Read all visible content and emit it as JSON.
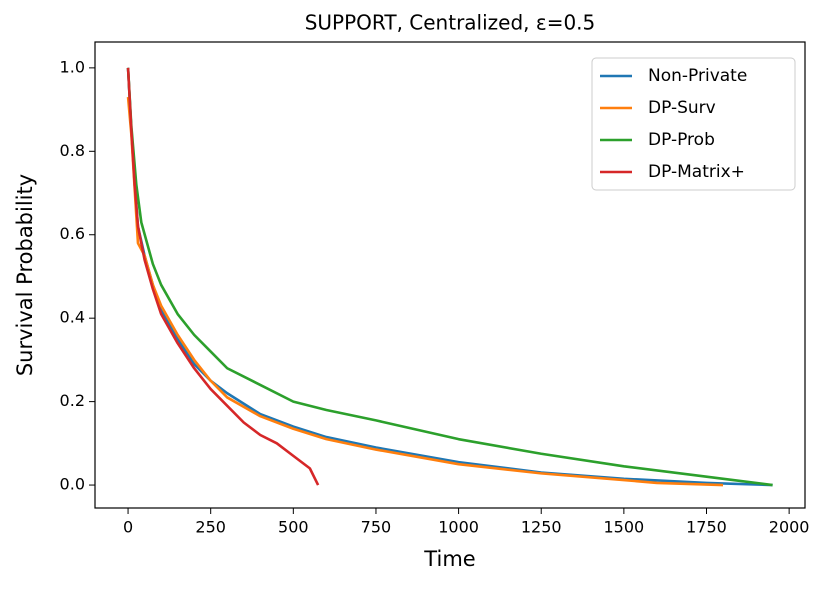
{
  "chart_data": {
    "type": "line",
    "title": "SUPPORT, Centralized, ε=0.5",
    "x_label": "Time",
    "y_label": "Survival Probability",
    "xlim": [
      -100,
      2048
    ],
    "ylim": [
      -0.055,
      1.062
    ],
    "xticks": [
      0,
      250,
      500,
      750,
      1000,
      1250,
      1500,
      1750,
      2000
    ],
    "yticks": [
      {
        "value": 0,
        "label": "0.0"
      },
      0.2,
      0.4,
      0.6,
      0.8,
      {
        "value": 1,
        "label": "1.0"
      }
    ],
    "legend": "upper right",
    "series": [
      {
        "name": "Non-Private",
        "color": "#1f77b4",
        "x": [
          0,
          10,
          20,
          30,
          50,
          75,
          100,
          150,
          200,
          250,
          300,
          400,
          500,
          600,
          750,
          1000,
          1250,
          1500,
          1750,
          1950
        ],
        "values": [
          1.0,
          0.85,
          0.72,
          0.62,
          0.55,
          0.48,
          0.42,
          0.35,
          0.29,
          0.25,
          0.22,
          0.17,
          0.14,
          0.115,
          0.09,
          0.055,
          0.03,
          0.015,
          0.005,
          0.0
        ]
      },
      {
        "name": "DP-Surv",
        "color": "#ff7f0e",
        "x": [
          0,
          10,
          20,
          30,
          50,
          75,
          100,
          150,
          200,
          250,
          300,
          400,
          500,
          600,
          750,
          1000,
          1250,
          1500,
          1600,
          1800
        ],
        "values": [
          0.93,
          0.84,
          0.71,
          0.58,
          0.55,
          0.48,
          0.43,
          0.36,
          0.3,
          0.25,
          0.21,
          0.165,
          0.135,
          0.11,
          0.085,
          0.05,
          0.028,
          0.012,
          0.005,
          0.0
        ]
      },
      {
        "name": "DP-Prob",
        "color": "#2ca02c",
        "x": [
          0,
          10,
          25,
          40,
          75,
          100,
          150,
          200,
          250,
          300,
          400,
          500,
          600,
          750,
          1000,
          1250,
          1500,
          1750,
          1950
        ],
        "values": [
          1.0,
          0.86,
          0.72,
          0.63,
          0.53,
          0.48,
          0.41,
          0.36,
          0.32,
          0.28,
          0.24,
          0.2,
          0.18,
          0.155,
          0.11,
          0.075,
          0.045,
          0.02,
          0.0
        ]
      },
      {
        "name": "DP-Matrix+",
        "color": "#d62728",
        "x": [
          0,
          10,
          20,
          30,
          50,
          75,
          100,
          150,
          200,
          250,
          300,
          350,
          400,
          450,
          500,
          550,
          575
        ],
        "values": [
          1.0,
          0.85,
          0.72,
          0.62,
          0.54,
          0.47,
          0.41,
          0.34,
          0.28,
          0.23,
          0.19,
          0.15,
          0.12,
          0.1,
          0.07,
          0.04,
          0.0
        ]
      }
    ]
  }
}
